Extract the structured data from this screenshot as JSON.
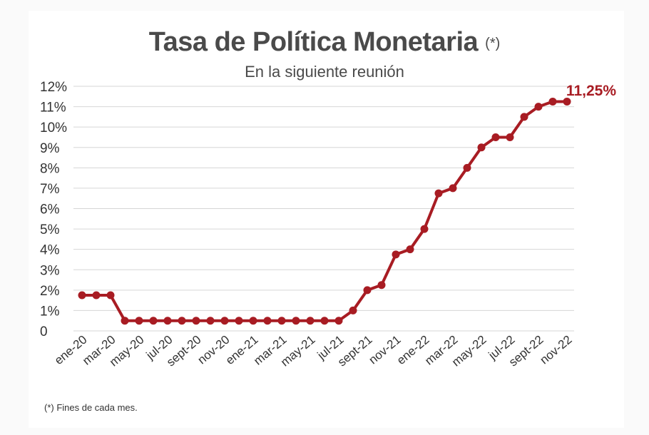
{
  "page": {
    "title": "Tasa de Política Monetaria",
    "title_note": "(*)",
    "subtitle": "En la siguiente reunión",
    "footnote": "(*) Fines de cada mes.",
    "last_value_label": "11,25%"
  },
  "colors": {
    "series": "#a81c23",
    "grid": "#d6d6d6",
    "text": "#333333",
    "background": "#ffffff"
  },
  "chart_data": {
    "type": "line",
    "title": "Tasa de Política Monetaria",
    "subtitle": "En la siguiente reunión",
    "xlabel": "",
    "ylabel": "",
    "ylim": [
      0,
      12
    ],
    "yticks": [
      0,
      1,
      2,
      3,
      4,
      5,
      6,
      7,
      8,
      9,
      10,
      11,
      12
    ],
    "ytick_labels": [
      "0",
      "1%",
      "2%",
      "3%",
      "4%",
      "5%",
      "6%",
      "7%",
      "8%",
      "9%",
      "10%",
      "11%",
      "12%"
    ],
    "x": [
      "ene-20",
      "feb-20",
      "mar-20",
      "abr-20",
      "may-20",
      "jun-20",
      "jul-20",
      "ago-20",
      "sept-20",
      "oct-20",
      "nov-20",
      "dic-20",
      "ene-21",
      "feb-21",
      "mar-21",
      "abr-21",
      "may-21",
      "jun-21",
      "jul-21",
      "ago-21",
      "sept-21",
      "oct-21",
      "nov-21",
      "dic-21",
      "ene-22",
      "feb-22",
      "mar-22",
      "abr-22",
      "may-22",
      "jun-22",
      "jul-22",
      "ago-22",
      "sept-22",
      "oct-22",
      "nov-22"
    ],
    "xtick_labels": [
      "ene-20",
      "mar-20",
      "may-20",
      "jul-20",
      "sept-20",
      "nov-20",
      "ene-21",
      "mar-21",
      "may-21",
      "jul-21",
      "sept-21",
      "nov-21",
      "ene-22",
      "mar-22",
      "may-22",
      "jul-22",
      "sept-22",
      "nov-22"
    ],
    "series": [
      {
        "values": [
          1.75,
          1.75,
          1.75,
          0.5,
          0.5,
          0.5,
          0.5,
          0.5,
          0.5,
          0.5,
          0.5,
          0.5,
          0.5,
          0.5,
          0.5,
          0.5,
          0.5,
          0.5,
          0.5,
          1.0,
          2.0,
          2.25,
          3.75,
          4.0,
          5.0,
          6.75,
          7.0,
          8.0,
          9.0,
          9.5,
          9.5,
          10.5,
          11.0,
          11.25,
          11.25
        ]
      }
    ],
    "grid": true,
    "legend": "none"
  }
}
